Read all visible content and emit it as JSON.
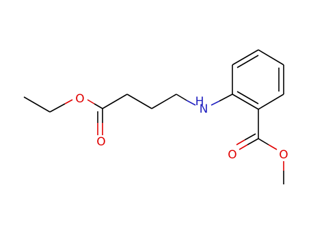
{
  "atoms": [
    {
      "label": "O"
    },
    {
      "label": "O"
    },
    {
      "label": "H"
    },
    {
      "label": "N"
    },
    {
      "label": "O"
    },
    {
      "label": "O"
    }
  ]
}
